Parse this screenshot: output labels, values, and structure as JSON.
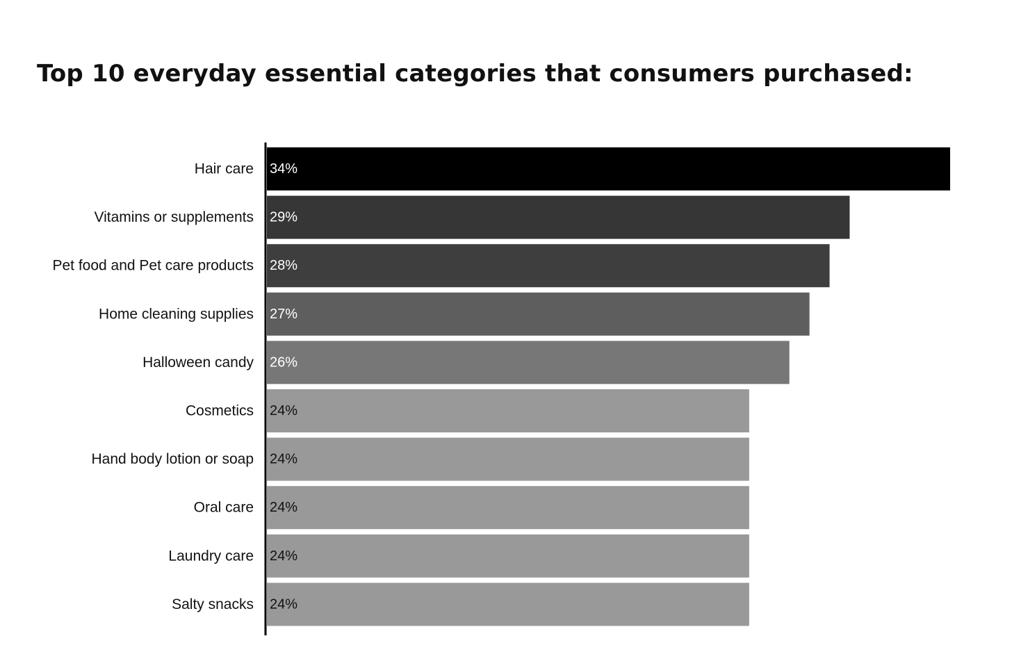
{
  "chart_data": {
    "type": "bar",
    "orientation": "horizontal",
    "title": "Top 10 everyday essential categories that consumers purchased:",
    "xlabel": "",
    "ylabel": "",
    "xlim": [
      0,
      34
    ],
    "grid": false,
    "legend": "none",
    "categories": [
      "Hair care",
      "Vitamins or supplements",
      "Pet food and Pet care products",
      "Home cleaning supplies",
      "Halloween candy",
      "Cosmetics",
      "Hand body lotion or soap",
      "Oral care",
      "Laundry care",
      "Salty snacks"
    ],
    "values": [
      34,
      29,
      28,
      27,
      26,
      24,
      24,
      24,
      24,
      24
    ],
    "value_labels": [
      "34%",
      "29%",
      "28%",
      "27%",
      "26%",
      "24%",
      "24%",
      "24%",
      "24%",
      "24%"
    ],
    "bar_colors": [
      "#000000",
      "#363636",
      "#3e3e3e",
      "#5e5e5e",
      "#777777",
      "#999999",
      "#999999",
      "#999999",
      "#999999",
      "#999999"
    ],
    "label_colors": [
      "#ffffff",
      "#ffffff",
      "#ffffff",
      "#ffffff",
      "#ffffff",
      "#111111",
      "#111111",
      "#111111",
      "#111111",
      "#111111"
    ],
    "axis_color": "#000000"
  }
}
